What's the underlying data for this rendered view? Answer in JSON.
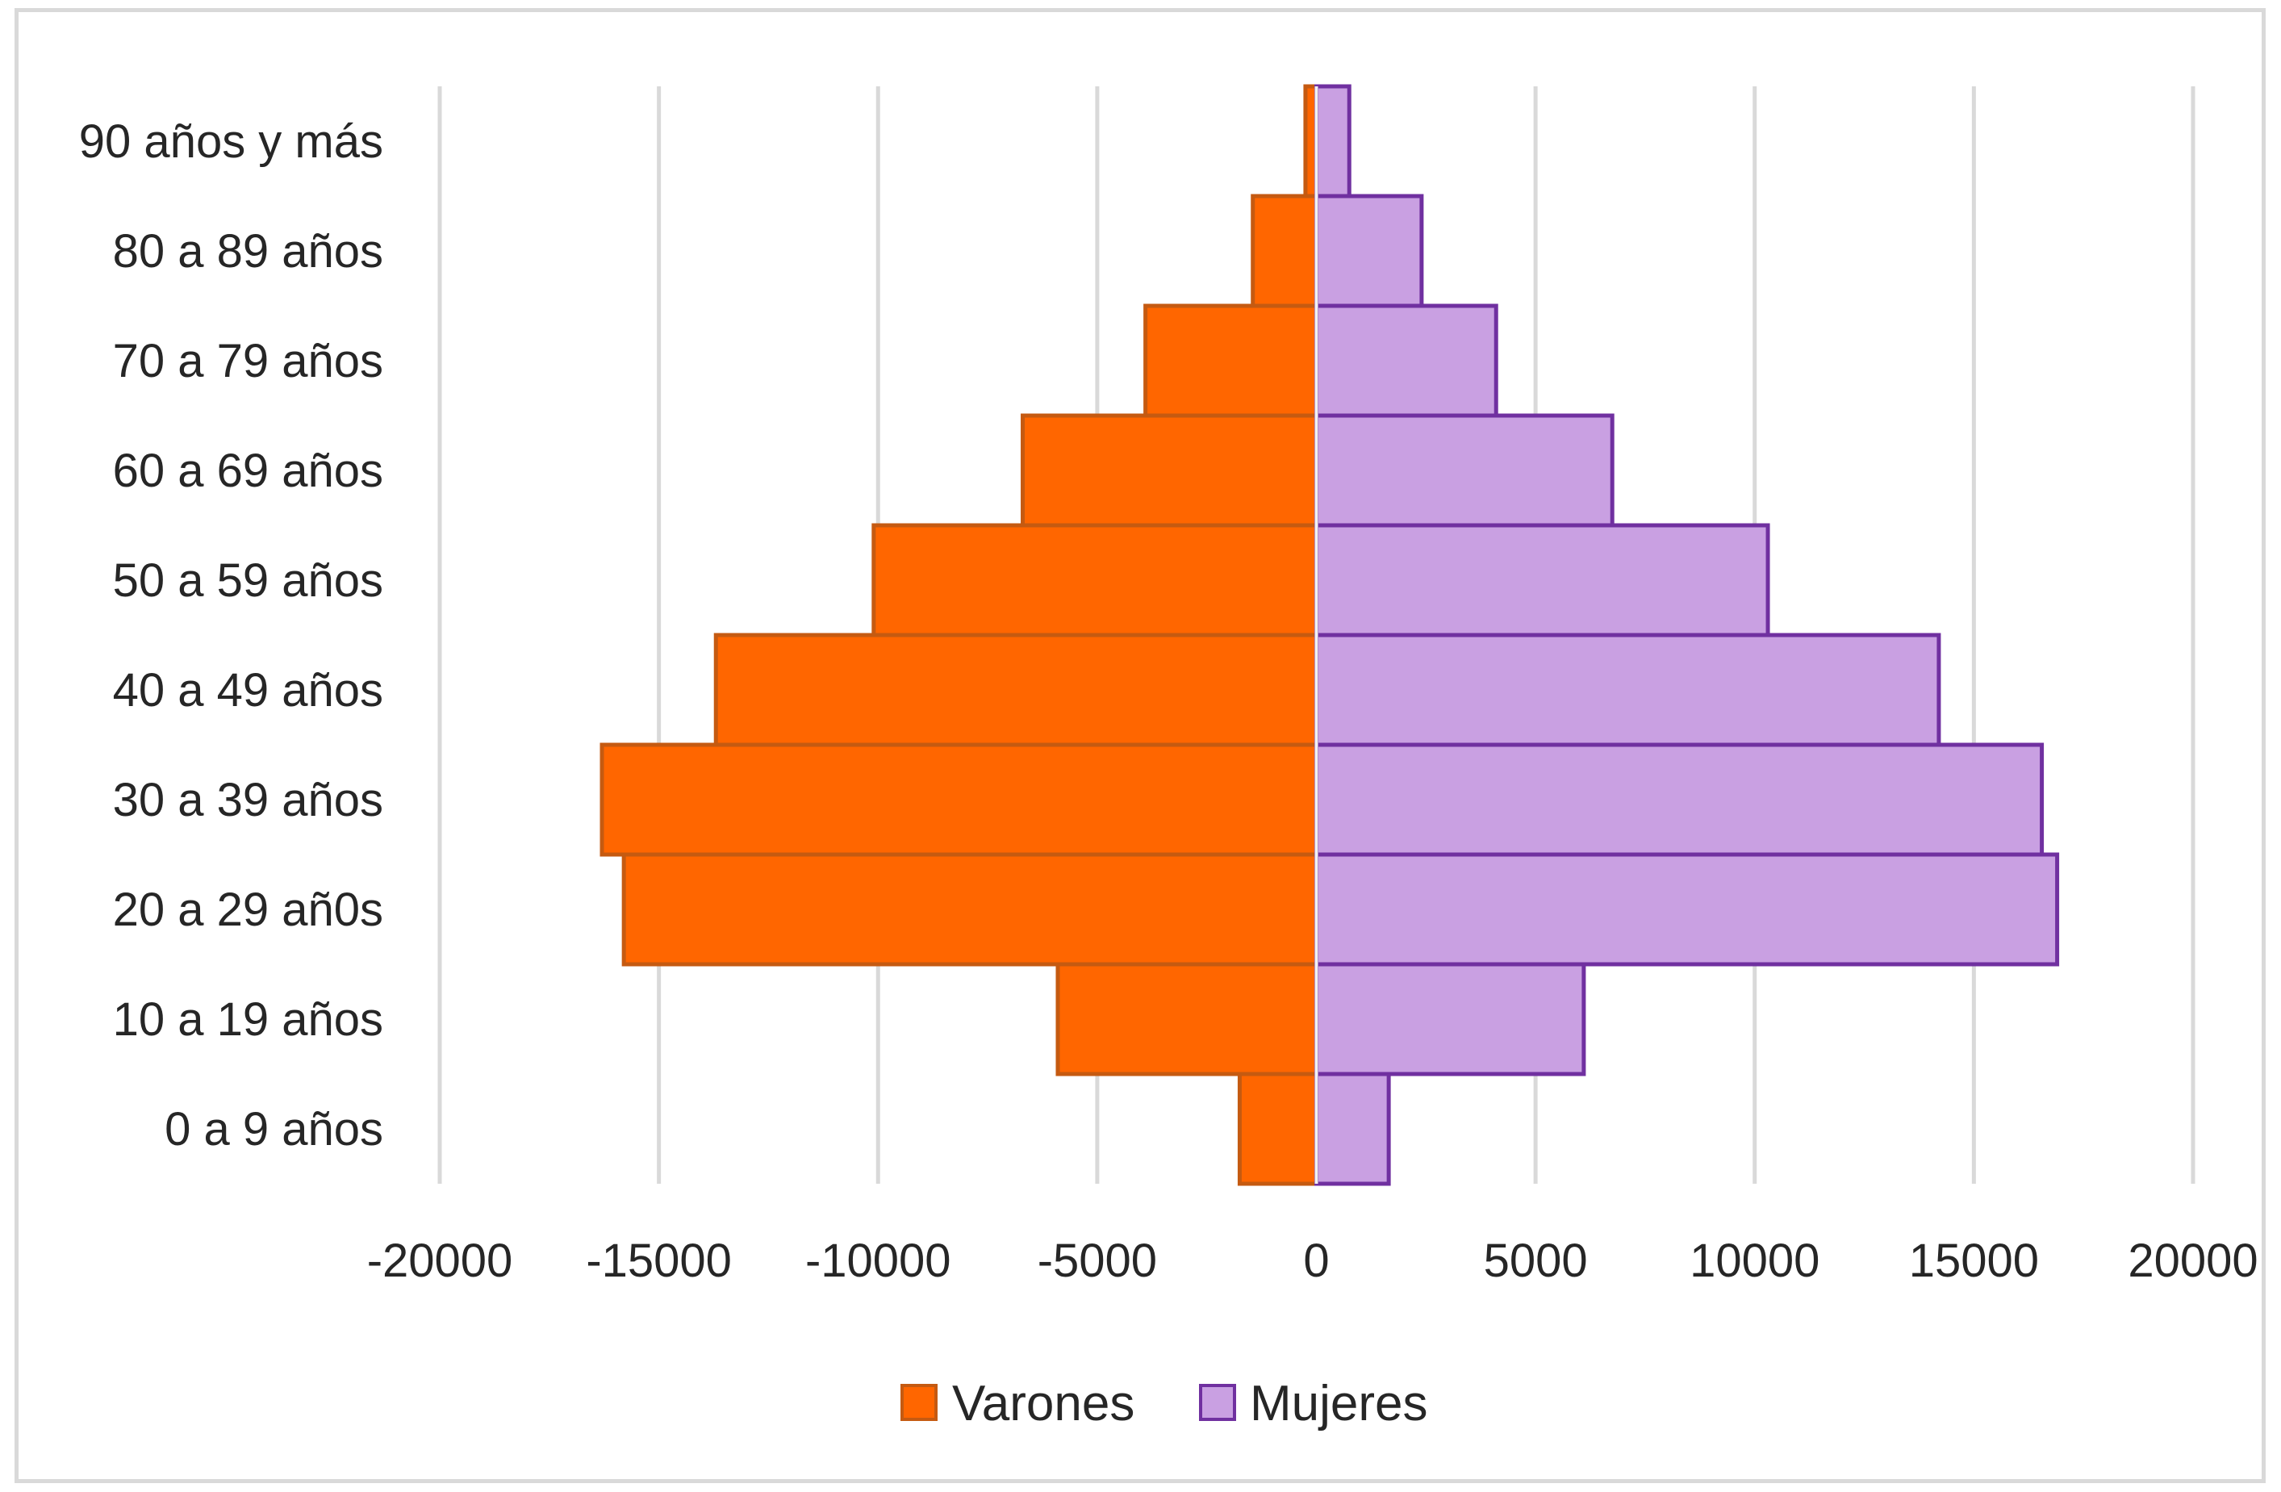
{
  "chart_data": {
    "type": "bar",
    "orientation": "horizontal",
    "categories": [
      "0 a 9 años",
      "10 a 19 años",
      "20 a 29 añ0s",
      "30 a 39 años",
      "40 a 49 años",
      "50 a 59 años",
      "60 a 69 años",
      "70 a 79 años",
      "80 a 89 años",
      "90 años y más"
    ],
    "series": [
      {
        "name": "Varones",
        "color": "#ff6600",
        "border": "#c55a11",
        "values": [
          -1750,
          -5900,
          -15800,
          -16300,
          -13700,
          -10100,
          -6700,
          -3900,
          -1450,
          -250
        ]
      },
      {
        "name": "Mujeres",
        "color": "#c9a0e2",
        "border": "#7030a0",
        "values": [
          1650,
          6100,
          16900,
          16550,
          14200,
          10300,
          6750,
          4100,
          2400,
          750
        ]
      }
    ],
    "xlim": [
      -20000,
      20000
    ],
    "xticks": [
      "-20000",
      "-15000",
      "-10000",
      "-5000",
      "0",
      "5000",
      "10000",
      "15000",
      "20000"
    ],
    "tick_values": [
      -20000,
      -15000,
      -10000,
      -5000,
      0,
      5000,
      10000,
      15000,
      20000
    ],
    "grid": true,
    "legend_position": "bottom"
  }
}
